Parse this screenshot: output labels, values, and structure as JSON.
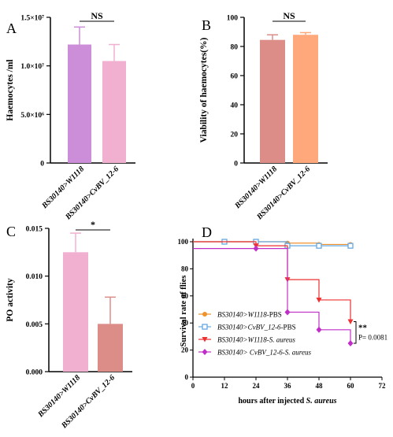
{
  "chart_data": [
    {
      "panel": "A",
      "type": "bar",
      "ylabel": "Haemocytes /ml",
      "categories": [
        "BS30140>W1118",
        "BS30140>CvBV_12-6"
      ],
      "values": [
        12200000,
        10500000
      ],
      "errors": [
        1800000,
        1700000
      ],
      "ylim": [
        0,
        15000000
      ],
      "yticks": [
        0,
        5000000,
        10000000,
        15000000
      ],
      "ytick_labels": [
        "0",
        "5.0×10⁶",
        "1.0×10⁷",
        "1.5×10⁷"
      ],
      "colors": [
        "#cc8ed8",
        "#f2b0d0"
      ],
      "significance": "NS"
    },
    {
      "panel": "B",
      "type": "bar",
      "ylabel": "Viability of haemocytes(%)",
      "categories": [
        "BS30140>W1118",
        "BS30140>CvBV_12-6"
      ],
      "values": [
        84.5,
        88
      ],
      "errors": [
        3.5,
        1.5
      ],
      "ylim": [
        0,
        100
      ],
      "yticks": [
        0,
        20,
        40,
        60,
        80,
        100
      ],
      "ytick_labels": [
        "0",
        "20",
        "40",
        "60",
        "80",
        "100"
      ],
      "colors": [
        "#dc8d88",
        "#ffa87c"
      ],
      "significance": "NS"
    },
    {
      "panel": "C",
      "type": "bar",
      "ylabel": "PO activity",
      "categories": [
        "BS30140>W1118",
        "BS30140>CvBV_12-6"
      ],
      "values": [
        0.0125,
        0.005
      ],
      "errors": [
        0.002,
        0.0028
      ],
      "ylim": [
        0,
        0.015
      ],
      "yticks": [
        0,
        0.005,
        0.01,
        0.015
      ],
      "ytick_labels": [
        "0.000",
        "0.005",
        "0.010",
        "0.015"
      ],
      "colors": [
        "#f2b0d0",
        "#dc8d88"
      ],
      "significance": "*"
    },
    {
      "panel": "D",
      "type": "line",
      "step": true,
      "ylabel": "Survival rate of flies",
      "xlabel_prefix": "hours after injected ",
      "xlabel_italic": "S. aureus",
      "xlim": [
        0,
        72
      ],
      "ylim": [
        0,
        100
      ],
      "xticks": [
        0,
        12,
        24,
        36,
        48,
        60,
        72
      ],
      "yticks": [
        0,
        20,
        40,
        60,
        80,
        100
      ],
      "series": [
        {
          "name": "BS30140>W1118-PBS",
          "italic": "BS30140>W1118",
          "suffix": "-PBS",
          "color": "#f0912c",
          "marker": "circle",
          "x": [
            0,
            12,
            24,
            36,
            48,
            60
          ],
          "y": [
            100,
            100,
            100,
            99,
            98,
            98
          ]
        },
        {
          "name": "BS30140>CvBV_12-6-PBS",
          "italic": "BS30140>CvBV_12-6",
          "suffix": "-PBS",
          "color": "#64a8e0",
          "marker": "square",
          "x": [
            0,
            12,
            24,
            36,
            48,
            60
          ],
          "y": [
            100,
            100,
            100,
            97,
            97,
            97
          ]
        },
        {
          "name": "BS30140>W1118-S. aureus",
          "italic": "BS30140>W1118-S. aureus",
          "suffix": "",
          "color": "#ee3030",
          "marker": "triangle-down",
          "x": [
            0,
            24,
            36,
            48,
            60
          ],
          "y": [
            100,
            97,
            72,
            57,
            41
          ]
        },
        {
          "name": "BS30140> CvBV_12-6-S. aureus",
          "italic": "BS30140> CvBV_12-6-S. aureus",
          "suffix": "",
          "color": "#c02ec8",
          "marker": "diamond",
          "x": [
            0,
            24,
            36,
            48,
            60
          ],
          "y": [
            95,
            95,
            48,
            35,
            25
          ]
        }
      ],
      "significance": "**",
      "p_value": "P= 0.0081"
    }
  ],
  "panel_labels": [
    "A",
    "B",
    "C",
    "D"
  ]
}
